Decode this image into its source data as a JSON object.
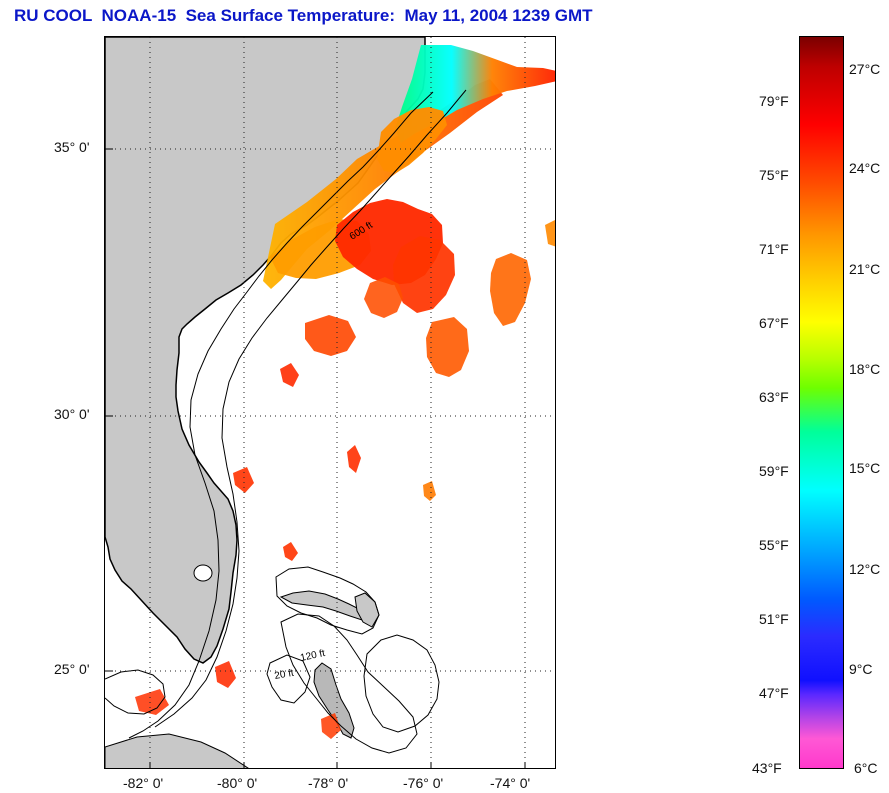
{
  "header": {
    "title": "RU COOL  NOAA-15  Sea Surface Temperature:  May 11, 2004 1239 GMT"
  },
  "map": {
    "lat_labels": [
      "35° 0'",
      "30° 0'",
      "25° 0'"
    ],
    "lon_labels": [
      "-82° 0'",
      "-80° 0'",
      "-78° 0'",
      "-76° 0'",
      "-74° 0'"
    ],
    "grid": true,
    "contour_labels": [
      "600 ft",
      "120 ft",
      "20 ft"
    ]
  },
  "colorbar": {
    "fahrenheit": [
      "79°F",
      "75°F",
      "71°F",
      "67°F",
      "63°F",
      "59°F",
      "55°F",
      "51°F",
      "47°F",
      "43°F"
    ],
    "celsius": [
      "27°C",
      "24°C",
      "21°C",
      "18°C",
      "15°C",
      "12°C",
      "9°C",
      "6°C"
    ]
  },
  "colors": {
    "title": "#0b17c8",
    "land": "#c8c8c8",
    "coastline": "#000000",
    "warm": "#ff3a00",
    "mid": "#ffb400",
    "cool": "#00ffff"
  }
}
